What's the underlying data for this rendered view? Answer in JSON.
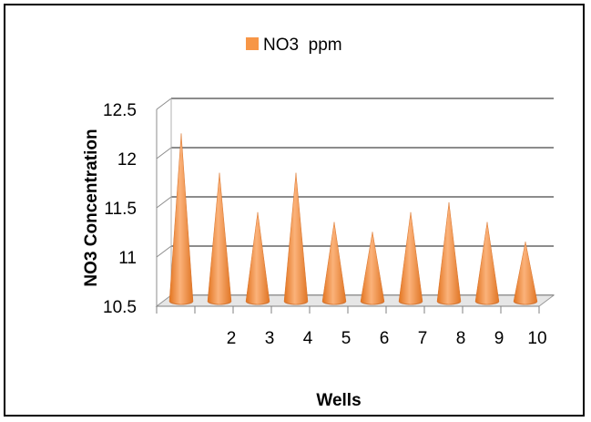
{
  "chart_data": {
    "type": "bar",
    "style": "3d-cone",
    "categories": [
      "",
      "2",
      "3",
      "4",
      "5",
      "6",
      "7",
      "8",
      "9",
      "10"
    ],
    "series": [
      {
        "name": "NO3  ppm",
        "color": "#F79646",
        "values": [
          12.2,
          11.8,
          11.4,
          11.8,
          11.3,
          11.2,
          11.4,
          11.5,
          11.3,
          11.1
        ]
      }
    ],
    "xlabel": "Wells",
    "ylabel": "NO3 Concentration",
    "ylim": [
      10.5,
      12.5
    ],
    "yticks": [
      10.5,
      11,
      11.5,
      12,
      12.5
    ],
    "ytick_labels": [
      "10.5",
      "11",
      "11.5",
      "12",
      "12.5"
    ],
    "grid": true,
    "legend_position": "top"
  }
}
